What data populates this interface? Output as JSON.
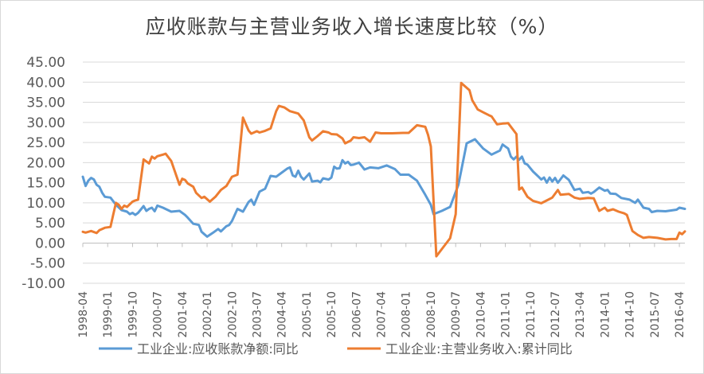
{
  "chart_data": {
    "type": "line",
    "title": "应收账款与主营业务收入增长速度比较（%）",
    "ylim": [
      -10,
      45
    ],
    "yticks": [
      "45.00",
      "40.00",
      "35.00",
      "30.00",
      "25.00",
      "20.00",
      "15.00",
      "10.00",
      "5.00",
      "0.00",
      "-5.00",
      "-10.00"
    ],
    "x_ticks": [
      "1998-04",
      "1999-01",
      "1999-10",
      "2000-07",
      "2001-04",
      "2002-01",
      "2002-10",
      "2003-07",
      "2004-04",
      "2005-01",
      "2005-10",
      "2006-07",
      "2007-04",
      "2008-01",
      "2008-10",
      "2009-07",
      "2010-04",
      "2011-01",
      "2011-10",
      "2012-07",
      "2013-04",
      "2014-01",
      "2014-10",
      "2015-07",
      "2016-04"
    ],
    "x_range": [
      "1998-04",
      "2016-06"
    ],
    "grid": true,
    "legend_position": "bottom",
    "series": [
      {
        "name": "工业企业:应收账款净额:同比",
        "color": "#5B9BD5",
        "points": [
          [
            "1998-04",
            16.5
          ],
          [
            "1998-05",
            14.2
          ],
          [
            "1998-06",
            15.5
          ],
          [
            "1998-07",
            16.2
          ],
          [
            "1998-08",
            15.8
          ],
          [
            "1998-09",
            14.5
          ],
          [
            "1998-10",
            14.0
          ],
          [
            "1998-11",
            12.5
          ],
          [
            "1998-12",
            11.5
          ],
          [
            "1999-02",
            11.3
          ],
          [
            "1999-04",
            9.5
          ],
          [
            "1999-06",
            8.2
          ],
          [
            "1999-08",
            7.8
          ],
          [
            "1999-09",
            7.2
          ],
          [
            "1999-10",
            7.5
          ],
          [
            "1999-11",
            7.0
          ],
          [
            "1999-12",
            7.5
          ],
          [
            "2000-02",
            9.2
          ],
          [
            "2000-03",
            8.0
          ],
          [
            "2000-04",
            8.5
          ],
          [
            "2000-05",
            8.8
          ],
          [
            "2000-06",
            7.9
          ],
          [
            "2000-07",
            9.3
          ],
          [
            "2000-09",
            8.8
          ],
          [
            "2000-12",
            7.8
          ],
          [
            "2001-03",
            8.0
          ],
          [
            "2001-05",
            7.0
          ],
          [
            "2001-06",
            6.3
          ],
          [
            "2001-08",
            4.8
          ],
          [
            "2001-10",
            4.5
          ],
          [
            "2001-11",
            2.8
          ],
          [
            "2002-01",
            1.6
          ],
          [
            "2002-03",
            2.5
          ],
          [
            "2002-05",
            3.5
          ],
          [
            "2002-06",
            2.9
          ],
          [
            "2002-08",
            4.2
          ],
          [
            "2002-09",
            4.5
          ],
          [
            "2002-10",
            5.5
          ],
          [
            "2002-12",
            8.5
          ],
          [
            "2003-02",
            7.8
          ],
          [
            "2003-04",
            10.2
          ],
          [
            "2003-05",
            10.8
          ],
          [
            "2003-06",
            9.5
          ],
          [
            "2003-08",
            12.8
          ],
          [
            "2003-10",
            13.5
          ],
          [
            "2003-12",
            16.7
          ],
          [
            "2004-02",
            16.5
          ],
          [
            "2004-04",
            17.5
          ],
          [
            "2004-06",
            18.5
          ],
          [
            "2004-07",
            18.8
          ],
          [
            "2004-08",
            16.8
          ],
          [
            "2004-09",
            16.5
          ],
          [
            "2004-10",
            18.0
          ],
          [
            "2004-11",
            16.5
          ],
          [
            "2004-12",
            15.8
          ],
          [
            "2005-02",
            17.3
          ],
          [
            "2005-03",
            15.3
          ],
          [
            "2005-05",
            15.5
          ],
          [
            "2005-06",
            15.1
          ],
          [
            "2005-07",
            16.1
          ],
          [
            "2005-09",
            15.8
          ],
          [
            "2005-10",
            16.3
          ],
          [
            "2005-11",
            19.0
          ],
          [
            "2005-12",
            18.5
          ],
          [
            "2006-01",
            18.6
          ],
          [
            "2006-02",
            20.6
          ],
          [
            "2006-03",
            19.8
          ],
          [
            "2006-04",
            20.2
          ],
          [
            "2006-05",
            19.4
          ],
          [
            "2006-06",
            19.5
          ],
          [
            "2006-08",
            20.0
          ],
          [
            "2006-10",
            18.3
          ],
          [
            "2006-12",
            18.8
          ],
          [
            "2007-03",
            18.6
          ],
          [
            "2007-06",
            19.3
          ],
          [
            "2007-09",
            18.4
          ],
          [
            "2007-11",
            17.0
          ],
          [
            "2008-02",
            17.0
          ],
          [
            "2008-05",
            15.5
          ],
          [
            "2008-08",
            12.0
          ],
          [
            "2008-10",
            9.5
          ],
          [
            "2008-11",
            7.2
          ],
          [
            "2009-02",
            8.0
          ],
          [
            "2009-05",
            9.0
          ],
          [
            "2009-08",
            14.5
          ],
          [
            "2009-11",
            24.8
          ],
          [
            "2010-02",
            25.8
          ],
          [
            "2010-05",
            23.5
          ],
          [
            "2010-08",
            22.0
          ],
          [
            "2010-11",
            23.0
          ],
          [
            "2010-12",
            24.5
          ],
          [
            "2011-02",
            23.5
          ],
          [
            "2011-03",
            21.5
          ],
          [
            "2011-04",
            20.8
          ],
          [
            "2011-05",
            21.5
          ],
          [
            "2011-06",
            20.7
          ],
          [
            "2011-07",
            21.5
          ],
          [
            "2011-08",
            19.8
          ],
          [
            "2011-09",
            19.5
          ],
          [
            "2011-11",
            17.8
          ],
          [
            "2012-01",
            16.5
          ],
          [
            "2012-02",
            15.8
          ],
          [
            "2012-03",
            16.3
          ],
          [
            "2012-04",
            15.0
          ],
          [
            "2012-05",
            16.3
          ],
          [
            "2012-06",
            15.3
          ],
          [
            "2012-07",
            16.2
          ],
          [
            "2012-08",
            15.0
          ],
          [
            "2012-10",
            16.8
          ],
          [
            "2012-12",
            15.7
          ],
          [
            "2013-02",
            13.2
          ],
          [
            "2013-04",
            13.5
          ],
          [
            "2013-05",
            12.5
          ],
          [
            "2013-07",
            12.7
          ],
          [
            "2013-08",
            12.3
          ],
          [
            "2013-09",
            12.7
          ],
          [
            "2013-11",
            13.8
          ],
          [
            "2014-01",
            13.0
          ],
          [
            "2014-02",
            13.2
          ],
          [
            "2014-03",
            12.3
          ],
          [
            "2014-05",
            12.2
          ],
          [
            "2014-07",
            11.2
          ],
          [
            "2014-10",
            10.8
          ],
          [
            "2014-12",
            10.0
          ],
          [
            "2015-01",
            10.8
          ],
          [
            "2015-03",
            8.8
          ],
          [
            "2015-05",
            8.5
          ],
          [
            "2015-06",
            7.7
          ],
          [
            "2015-08",
            8.0
          ],
          [
            "2015-11",
            7.9
          ],
          [
            "2016-01",
            8.1
          ],
          [
            "2016-03",
            8.3
          ],
          [
            "2016-04",
            8.8
          ],
          [
            "2016-06",
            8.5
          ]
        ]
      },
      {
        "name": "工业企业:主营业务收入:累计同比",
        "color": "#ED7D31",
        "points": [
          [
            "1998-04",
            2.8
          ],
          [
            "1998-05",
            2.6
          ],
          [
            "1998-07",
            3.0
          ],
          [
            "1998-09",
            2.5
          ],
          [
            "1998-10",
            3.2
          ],
          [
            "1998-12",
            3.8
          ],
          [
            "1999-02",
            4.0
          ],
          [
            "1999-03",
            7.0
          ],
          [
            "1999-04",
            10.0
          ],
          [
            "1999-05",
            9.5
          ],
          [
            "1999-06",
            8.5
          ],
          [
            "1999-07",
            9.3
          ],
          [
            "1999-08",
            9.0
          ],
          [
            "1999-10",
            10.3
          ],
          [
            "1999-11",
            10.6
          ],
          [
            "1999-12",
            10.8
          ],
          [
            "2000-02",
            20.8
          ],
          [
            "2000-04",
            19.8
          ],
          [
            "2000-05",
            21.5
          ],
          [
            "2000-06",
            21.0
          ],
          [
            "2000-07",
            21.6
          ],
          [
            "2000-09",
            22.0
          ],
          [
            "2000-10",
            22.2
          ],
          [
            "2000-12",
            20.4
          ],
          [
            "2001-03",
            14.5
          ],
          [
            "2001-04",
            16.0
          ],
          [
            "2001-05",
            15.7
          ],
          [
            "2001-06",
            14.8
          ],
          [
            "2001-08",
            14.0
          ],
          [
            "2001-09",
            12.5
          ],
          [
            "2001-11",
            11.2
          ],
          [
            "2001-12",
            11.5
          ],
          [
            "2002-02",
            10.3
          ],
          [
            "2002-04",
            11.5
          ],
          [
            "2002-06",
            13.2
          ],
          [
            "2002-08",
            14.2
          ],
          [
            "2002-10",
            16.5
          ],
          [
            "2002-12",
            17.0
          ],
          [
            "2003-02",
            31.2
          ],
          [
            "2003-04",
            28.0
          ],
          [
            "2003-05",
            27.2
          ],
          [
            "2003-07",
            27.8
          ],
          [
            "2003-08",
            27.5
          ],
          [
            "2003-10",
            27.9
          ],
          [
            "2003-12",
            28.5
          ],
          [
            "2004-02",
            32.8
          ],
          [
            "2004-03",
            34.1
          ],
          [
            "2004-05",
            33.7
          ],
          [
            "2004-07",
            32.8
          ],
          [
            "2004-10",
            32.2
          ],
          [
            "2004-12",
            30.5
          ],
          [
            "2005-02",
            26.3
          ],
          [
            "2005-03",
            25.5
          ],
          [
            "2005-05",
            26.6
          ],
          [
            "2005-07",
            27.8
          ],
          [
            "2005-09",
            27.5
          ],
          [
            "2005-10",
            27.1
          ],
          [
            "2005-12",
            27.0
          ],
          [
            "2006-02",
            26.0
          ],
          [
            "2006-03",
            24.8
          ],
          [
            "2006-05",
            25.5
          ],
          [
            "2006-06",
            26.3
          ],
          [
            "2006-08",
            26.1
          ],
          [
            "2006-10",
            26.3
          ],
          [
            "2006-12",
            25.2
          ],
          [
            "2007-02",
            27.5
          ],
          [
            "2007-04",
            27.3
          ],
          [
            "2007-08",
            27.3
          ],
          [
            "2007-12",
            27.4
          ],
          [
            "2008-02",
            27.4
          ],
          [
            "2008-05",
            29.3
          ],
          [
            "2008-08",
            28.9
          ],
          [
            "2008-09",
            26.9
          ],
          [
            "2008-10",
            24.0
          ],
          [
            "2008-12",
            -3.3
          ],
          [
            "2009-02",
            -1.5
          ],
          [
            "2009-05",
            1.2
          ],
          [
            "2009-07",
            7.2
          ],
          [
            "2009-09",
            39.8
          ],
          [
            "2009-12",
            38.0
          ],
          [
            "2010-01",
            35.5
          ],
          [
            "2010-03",
            33.2
          ],
          [
            "2010-05",
            32.5
          ],
          [
            "2010-07",
            31.8
          ],
          [
            "2010-08",
            31.5
          ],
          [
            "2010-10",
            29.5
          ],
          [
            "2010-12",
            29.7
          ],
          [
            "2011-02",
            29.8
          ],
          [
            "2011-05",
            27.1
          ],
          [
            "2011-06",
            13.3
          ],
          [
            "2011-07",
            13.8
          ],
          [
            "2011-09",
            11.5
          ],
          [
            "2011-11",
            10.5
          ],
          [
            "2012-02",
            9.9
          ],
          [
            "2012-04",
            10.6
          ],
          [
            "2012-06",
            11.3
          ],
          [
            "2012-08",
            13.2
          ],
          [
            "2012-09",
            12.0
          ],
          [
            "2012-12",
            12.2
          ],
          [
            "2013-02",
            11.3
          ],
          [
            "2013-04",
            11.0
          ],
          [
            "2013-07",
            11.2
          ],
          [
            "2013-09",
            11.1
          ],
          [
            "2013-11",
            8.0
          ],
          [
            "2014-01",
            8.8
          ],
          [
            "2014-02",
            8.0
          ],
          [
            "2014-04",
            8.4
          ],
          [
            "2014-06",
            7.8
          ],
          [
            "2014-08",
            7.4
          ],
          [
            "2014-09",
            7.0
          ],
          [
            "2014-10",
            5.0
          ],
          [
            "2014-11",
            3.0
          ],
          [
            "2015-01",
            2.0
          ],
          [
            "2015-03",
            1.3
          ],
          [
            "2015-05",
            1.5
          ],
          [
            "2015-08",
            1.3
          ],
          [
            "2015-11",
            0.9
          ],
          [
            "2016-01",
            1.0
          ],
          [
            "2016-03",
            1.0
          ],
          [
            "2016-04",
            2.6
          ],
          [
            "2016-05",
            2.2
          ],
          [
            "2016-06",
            2.9
          ]
        ]
      }
    ]
  }
}
